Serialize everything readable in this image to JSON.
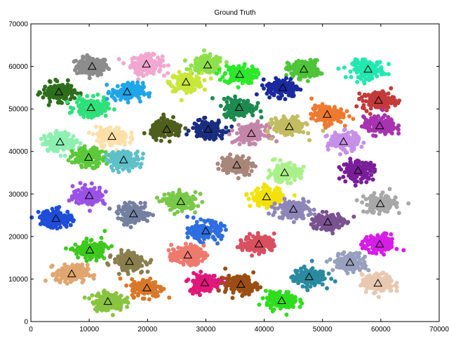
{
  "chart_data": {
    "type": "scatter",
    "title": "Ground Truth",
    "xlabel": "",
    "ylabel": "",
    "xlim": [
      0,
      70000
    ],
    "ylim": [
      0,
      70000
    ],
    "x_ticks": [
      0,
      10000,
      20000,
      30000,
      40000,
      50000,
      60000,
      70000
    ],
    "y_ticks": [
      0,
      10000,
      20000,
      30000,
      40000,
      50000,
      60000,
      70000
    ],
    "x_tick_labels": [
      "0",
      "10000",
      "20000",
      "30000",
      "40000",
      "50000",
      "60000",
      "70000"
    ],
    "y_tick_labels": [
      "0",
      "10000",
      "20000",
      "30000",
      "40000",
      "50000",
      "60000",
      "70000"
    ],
    "grid": false,
    "legend": "none",
    "center_marker": "hollow-triangle",
    "clusters": [
      {
        "cx": 10500,
        "cy": 60000,
        "color": "#8c8c8c"
      },
      {
        "cx": 19800,
        "cy": 60500,
        "color": "#f2a7d0"
      },
      {
        "cx": 30300,
        "cy": 60300,
        "color": "#8ee04b"
      },
      {
        "cx": 26600,
        "cy": 56300,
        "color": "#c9e63a"
      },
      {
        "cx": 35800,
        "cy": 58100,
        "color": "#2ee82a"
      },
      {
        "cx": 46800,
        "cy": 59300,
        "color": "#4fc43a"
      },
      {
        "cx": 57800,
        "cy": 59300,
        "color": "#22e8b0"
      },
      {
        "cx": 4800,
        "cy": 54000,
        "color": "#2e6e1c"
      },
      {
        "cx": 10300,
        "cy": 50300,
        "color": "#2ee07a"
      },
      {
        "cx": 16500,
        "cy": 54000,
        "color": "#20a6e8"
      },
      {
        "cx": 43200,
        "cy": 55000,
        "color": "#1a2a9e"
      },
      {
        "cx": 35700,
        "cy": 50300,
        "color": "#1d8a50"
      },
      {
        "cx": 59600,
        "cy": 52000,
        "color": "#c43a3a"
      },
      {
        "cx": 50800,
        "cy": 48700,
        "color": "#ee7a30"
      },
      {
        "cx": 59800,
        "cy": 46000,
        "color": "#a733b0"
      },
      {
        "cx": 5000,
        "cy": 42200,
        "color": "#8ef0b0"
      },
      {
        "cx": 13900,
        "cy": 43500,
        "color": "#fde0a8"
      },
      {
        "cx": 23300,
        "cy": 45200,
        "color": "#4e5e1c"
      },
      {
        "cx": 30400,
        "cy": 45200,
        "color": "#1a2e80"
      },
      {
        "cx": 37800,
        "cy": 44200,
        "color": "#c486a8"
      },
      {
        "cx": 44300,
        "cy": 45800,
        "color": "#c2bc62"
      },
      {
        "cx": 53600,
        "cy": 42300,
        "color": "#c690e8"
      },
      {
        "cx": 9900,
        "cy": 38600,
        "color": "#5cc83a"
      },
      {
        "cx": 15900,
        "cy": 38000,
        "color": "#5ec0c8"
      },
      {
        "cx": 35300,
        "cy": 36800,
        "color": "#a8867a"
      },
      {
        "cx": 43500,
        "cy": 35000,
        "color": "#aaf08a"
      },
      {
        "cx": 56100,
        "cy": 35500,
        "color": "#7a1e9a"
      },
      {
        "cx": 10000,
        "cy": 29600,
        "color": "#9a52e6"
      },
      {
        "cx": 25700,
        "cy": 28200,
        "color": "#7ac84a"
      },
      {
        "cx": 40400,
        "cy": 29300,
        "color": "#f2e20a"
      },
      {
        "cx": 59900,
        "cy": 27700,
        "color": "#a8a8a8"
      },
      {
        "cx": 4300,
        "cy": 24200,
        "color": "#1e4ed8"
      },
      {
        "cx": 17600,
        "cy": 25300,
        "color": "#7480a0"
      },
      {
        "cx": 45000,
        "cy": 26400,
        "color": "#8e86b8"
      },
      {
        "cx": 50900,
        "cy": 23400,
        "color": "#7a5290"
      },
      {
        "cx": 30000,
        "cy": 21300,
        "color": "#2e6ee0"
      },
      {
        "cx": 10100,
        "cy": 16800,
        "color": "#3ec81e"
      },
      {
        "cx": 16900,
        "cy": 14100,
        "color": "#8a7e4e"
      },
      {
        "cx": 26900,
        "cy": 15600,
        "color": "#ee7a6e"
      },
      {
        "cx": 39100,
        "cy": 18200,
        "color": "#d85060"
      },
      {
        "cx": 54700,
        "cy": 13900,
        "color": "#98a0be"
      },
      {
        "cx": 59800,
        "cy": 18200,
        "color": "#d61ee6"
      },
      {
        "cx": 7000,
        "cy": 11200,
        "color": "#e0a670"
      },
      {
        "cx": 19900,
        "cy": 7900,
        "color": "#d8782a"
      },
      {
        "cx": 29800,
        "cy": 9100,
        "color": "#e0187a"
      },
      {
        "cx": 36000,
        "cy": 8700,
        "color": "#9a4e14"
      },
      {
        "cx": 47700,
        "cy": 10500,
        "color": "#2a8aa0"
      },
      {
        "cx": 59500,
        "cy": 9000,
        "color": "#e8c8b0"
      },
      {
        "cx": 13200,
        "cy": 4700,
        "color": "#88c440"
      },
      {
        "cx": 43000,
        "cy": 4900,
        "color": "#2ede1e"
      }
    ]
  }
}
